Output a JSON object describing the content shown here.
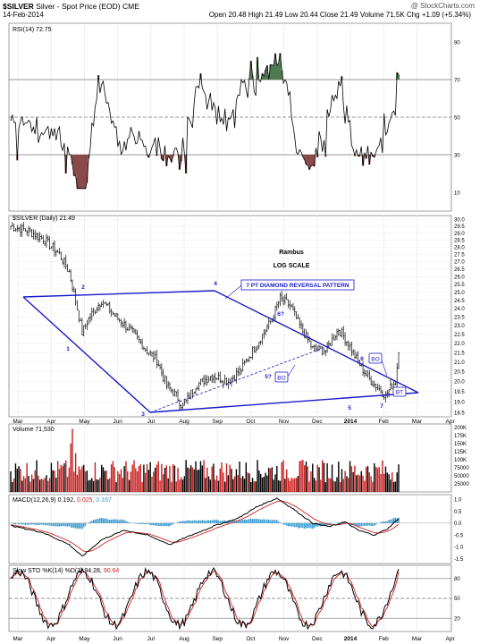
{
  "header": {
    "symbol": "$SILVER",
    "name": "Silver - Spot Price (EOD)",
    "exchange": "CME",
    "watermark": "@ StockCharts.com",
    "date": "14-Feb-2014",
    "quote": {
      "open_label": "Open",
      "open": "20.48",
      "high_label": "High",
      "high": "21.49",
      "low_label": "Low",
      "low": "20.44",
      "close_label": "Close",
      "close": "21.49",
      "volume_label": "Volume",
      "volume": "71.5K",
      "chg_label": "Chg",
      "chg": "+1.09 (+5.34%)"
    }
  },
  "chart_data": [
    {
      "type": "line",
      "panel": "rsi",
      "legend": "RSI(14) 72.75",
      "y_ticks": [
        10,
        30,
        50,
        70,
        90
      ],
      "ylim": [
        0,
        100
      ],
      "reference_lines": [
        30,
        50,
        70
      ],
      "colors": {
        "line": "#000000",
        "overbought_fill": "#4f7a4f",
        "oversold_fill": "#8a4a4a"
      }
    },
    {
      "type": "ohlc",
      "panel": "price",
      "legend": "$SILVER (Daily) 21.49",
      "scale": "log",
      "y_ticks": [
        18.5,
        19.0,
        19.5,
        20.0,
        20.5,
        21.0,
        21.5,
        22.0,
        22.5,
        23.0,
        23.5,
        24.0,
        24.5,
        25.0,
        25.5,
        26.0,
        26.5,
        27.0,
        27.5,
        28.0,
        28.5,
        29.0,
        29.5,
        30.0
      ],
      "ylim": [
        18.3,
        30.3
      ],
      "annotations": {
        "author": "Rambus",
        "scale_note": "LOG SCALE",
        "pattern_box": "7 PT DIAMOND REVERSAL PATTERN",
        "points": [
          "1",
          "2",
          "3",
          "4",
          "5",
          "6",
          "7",
          "5?",
          "6?",
          "BO",
          "BO",
          "BT"
        ]
      },
      "colors": {
        "bars": "#000000",
        "pattern": "#1a1acc"
      }
    },
    {
      "type": "bar",
      "panel": "volume",
      "legend": "Volume 71,530",
      "y_ticks": [
        "200K",
        "175K",
        "150K",
        "125K",
        "100K",
        "75000",
        "50000",
        "25000"
      ],
      "colors": {
        "up": "#000000",
        "down": "#c81e1e"
      }
    },
    {
      "type": "line",
      "panel": "macd",
      "legend": {
        "label": "MACD(12,26,9)",
        "macd": "0.192",
        "signal": "0.025",
        "hist": "0.167"
      },
      "y_ticks": [
        "1.0",
        "0.5",
        "0.0",
        "-0.5",
        "-1.0",
        "-1.5"
      ],
      "ylim": [
        -1.7,
        1.2
      ],
      "colors": {
        "macd": "#000000",
        "signal": "#d22020",
        "histogram": "#3a9ad0"
      }
    },
    {
      "type": "line",
      "panel": "stoch",
      "legend": {
        "label": "Slow STO %K(14) %D(3)",
        "k": "94.28",
        "d": "90.64"
      },
      "y_ticks": [
        20,
        50,
        80
      ],
      "ylim": [
        0,
        100
      ],
      "colors": {
        "k": "#000000",
        "d": "#d22020"
      }
    }
  ],
  "x_axis": {
    "months": [
      "Mar",
      "Apr",
      "May",
      "Jun",
      "Jul",
      "Aug",
      "Sep",
      "Oct",
      "Nov",
      "Dec",
      "2014",
      "Feb",
      "Mar",
      "Apr"
    ]
  }
}
